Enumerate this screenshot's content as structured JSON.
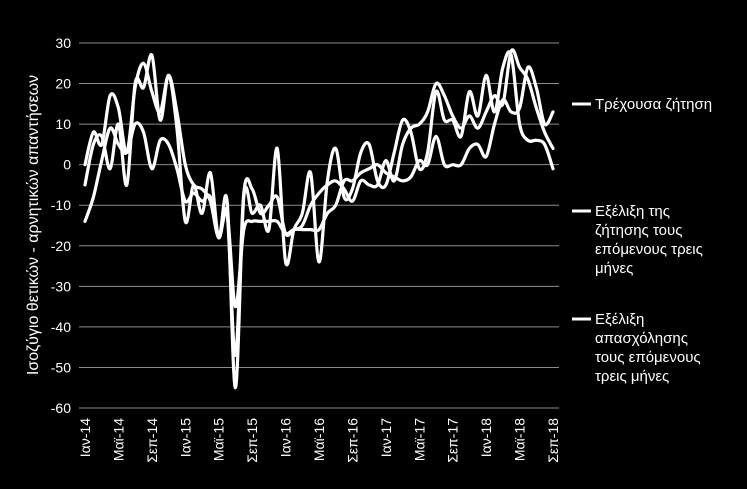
{
  "chart_data": {
    "type": "line",
    "ylabel": "Ισοζύγιο θετικών - αρνητικών απαντήσεων",
    "xlabel": "",
    "ylim": [
      -60,
      30
    ],
    "yticks": [
      30,
      20,
      10,
      0,
      -10,
      -20,
      -30,
      -40,
      -50,
      -60
    ],
    "grid": "horizontal",
    "legend_position": "right",
    "x": [
      "Ιαν-14",
      "Φεβ-14",
      "Μαρ-14",
      "Απρ-14",
      "Μαϊ-14",
      "Ιουν-14",
      "Ιουλ-14",
      "Αυγ-14",
      "Σεπ-14",
      "Οκτ-14",
      "Νοε-14",
      "Δεκ-14",
      "Ιαν-15",
      "Φεβ-15",
      "Μαρ-15",
      "Απρ-15",
      "Μαϊ-15",
      "Ιουν-15",
      "Ιουλ-15",
      "Αυγ-15",
      "Σεπ-15",
      "Οκτ-15",
      "Νοε-15",
      "Δεκ-15",
      "Ιαν-16",
      "Φεβ-16",
      "Μαρ-16",
      "Απρ-16",
      "Μαϊ-16",
      "Ιουν-16",
      "Ιουλ-16",
      "Αυγ-16",
      "Σεπ-16",
      "Οκτ-16",
      "Νοε-16",
      "Δεκ-16",
      "Ιαν-17",
      "Φεβ-17",
      "Μαρ-17",
      "Απρ-17",
      "Μαϊ-17",
      "Ιουν-17",
      "Ιουλ-17",
      "Αυγ-17",
      "Σεπ-17",
      "Οκτ-17",
      "Νοε-17",
      "Δεκ-17",
      "Ιαν-18",
      "Φεβ-18",
      "Μαρ-18",
      "Απρ-18",
      "Μαϊ-18",
      "Ιουν-18",
      "Ιουλ-18",
      "Αυγ-18",
      "Σεπ-18"
    ],
    "tick_labels": [
      "Ιαν-14",
      "Μαϊ-14",
      "Σεπ-14",
      "Ιαν-15",
      "Μαϊ-15",
      "Σεπ-15",
      "Ιαν-16",
      "Μαϊ-16",
      "Σεπ-16",
      "Ιαν-17",
      "Μαϊ-17",
      "Σεπ-17",
      "Ιαν-18",
      "Μαϊ-18",
      "Σεπ-18"
    ],
    "series": [
      {
        "name": "Τρέχουσα ζήτηση",
        "color": "#ffffff",
        "values": [
          -14,
          -8,
          1,
          9,
          5,
          3,
          10,
          8,
          -1,
          6,
          5,
          -1,
          -9,
          -7,
          -9,
          -8,
          -18,
          -12,
          -35,
          -16,
          -14,
          -14,
          -14,
          -14,
          -17,
          -16,
          -16,
          -16,
          -16,
          -12,
          -10,
          -4,
          -4,
          -2,
          -1,
          0,
          -2,
          -3,
          -4,
          -3,
          1,
          0,
          7,
          0,
          0,
          0,
          4,
          5,
          2,
          10,
          16,
          13,
          14,
          24,
          19,
          10,
          13
        ]
      },
      {
        "name": "Εξέλιξη της ζήτησης τους επόμενους τρεις μήνες",
        "color": "#ffffff",
        "values": [
          0,
          8,
          5,
          17,
          14,
          3,
          19,
          25,
          18,
          13,
          22,
          13,
          0,
          -5,
          -6,
          -9,
          -18,
          -12,
          -47,
          -7,
          -6,
          -12,
          -10,
          -8,
          -17,
          -16,
          -15,
          -10,
          -7,
          -5,
          -4,
          -6,
          -9,
          -4,
          -5,
          -5,
          1,
          -4,
          5,
          9,
          10,
          13,
          20,
          17,
          12,
          9,
          12,
          9,
          13,
          17,
          15,
          28,
          24,
          21,
          14,
          8,
          4
        ]
      },
      {
        "name": "Εξέλιξη απασχόλησης τους επόμενους τρεις μήνες",
        "color": "#ffffff",
        "values": [
          -5,
          5,
          7,
          -1,
          10,
          -5,
          20,
          19,
          27,
          11,
          22,
          9,
          -14,
          -5,
          -12,
          -2,
          -18,
          -9,
          -55,
          -8,
          -12,
          -10,
          -16,
          4,
          -24,
          -16,
          -12,
          -2,
          -24,
          -4,
          4,
          -8,
          -6,
          3,
          5,
          -4,
          -5,
          3,
          11,
          8,
          -1,
          3,
          18,
          11,
          11,
          7,
          18,
          12,
          22,
          13,
          24,
          27,
          10,
          6,
          6,
          5,
          -1
        ]
      }
    ]
  }
}
